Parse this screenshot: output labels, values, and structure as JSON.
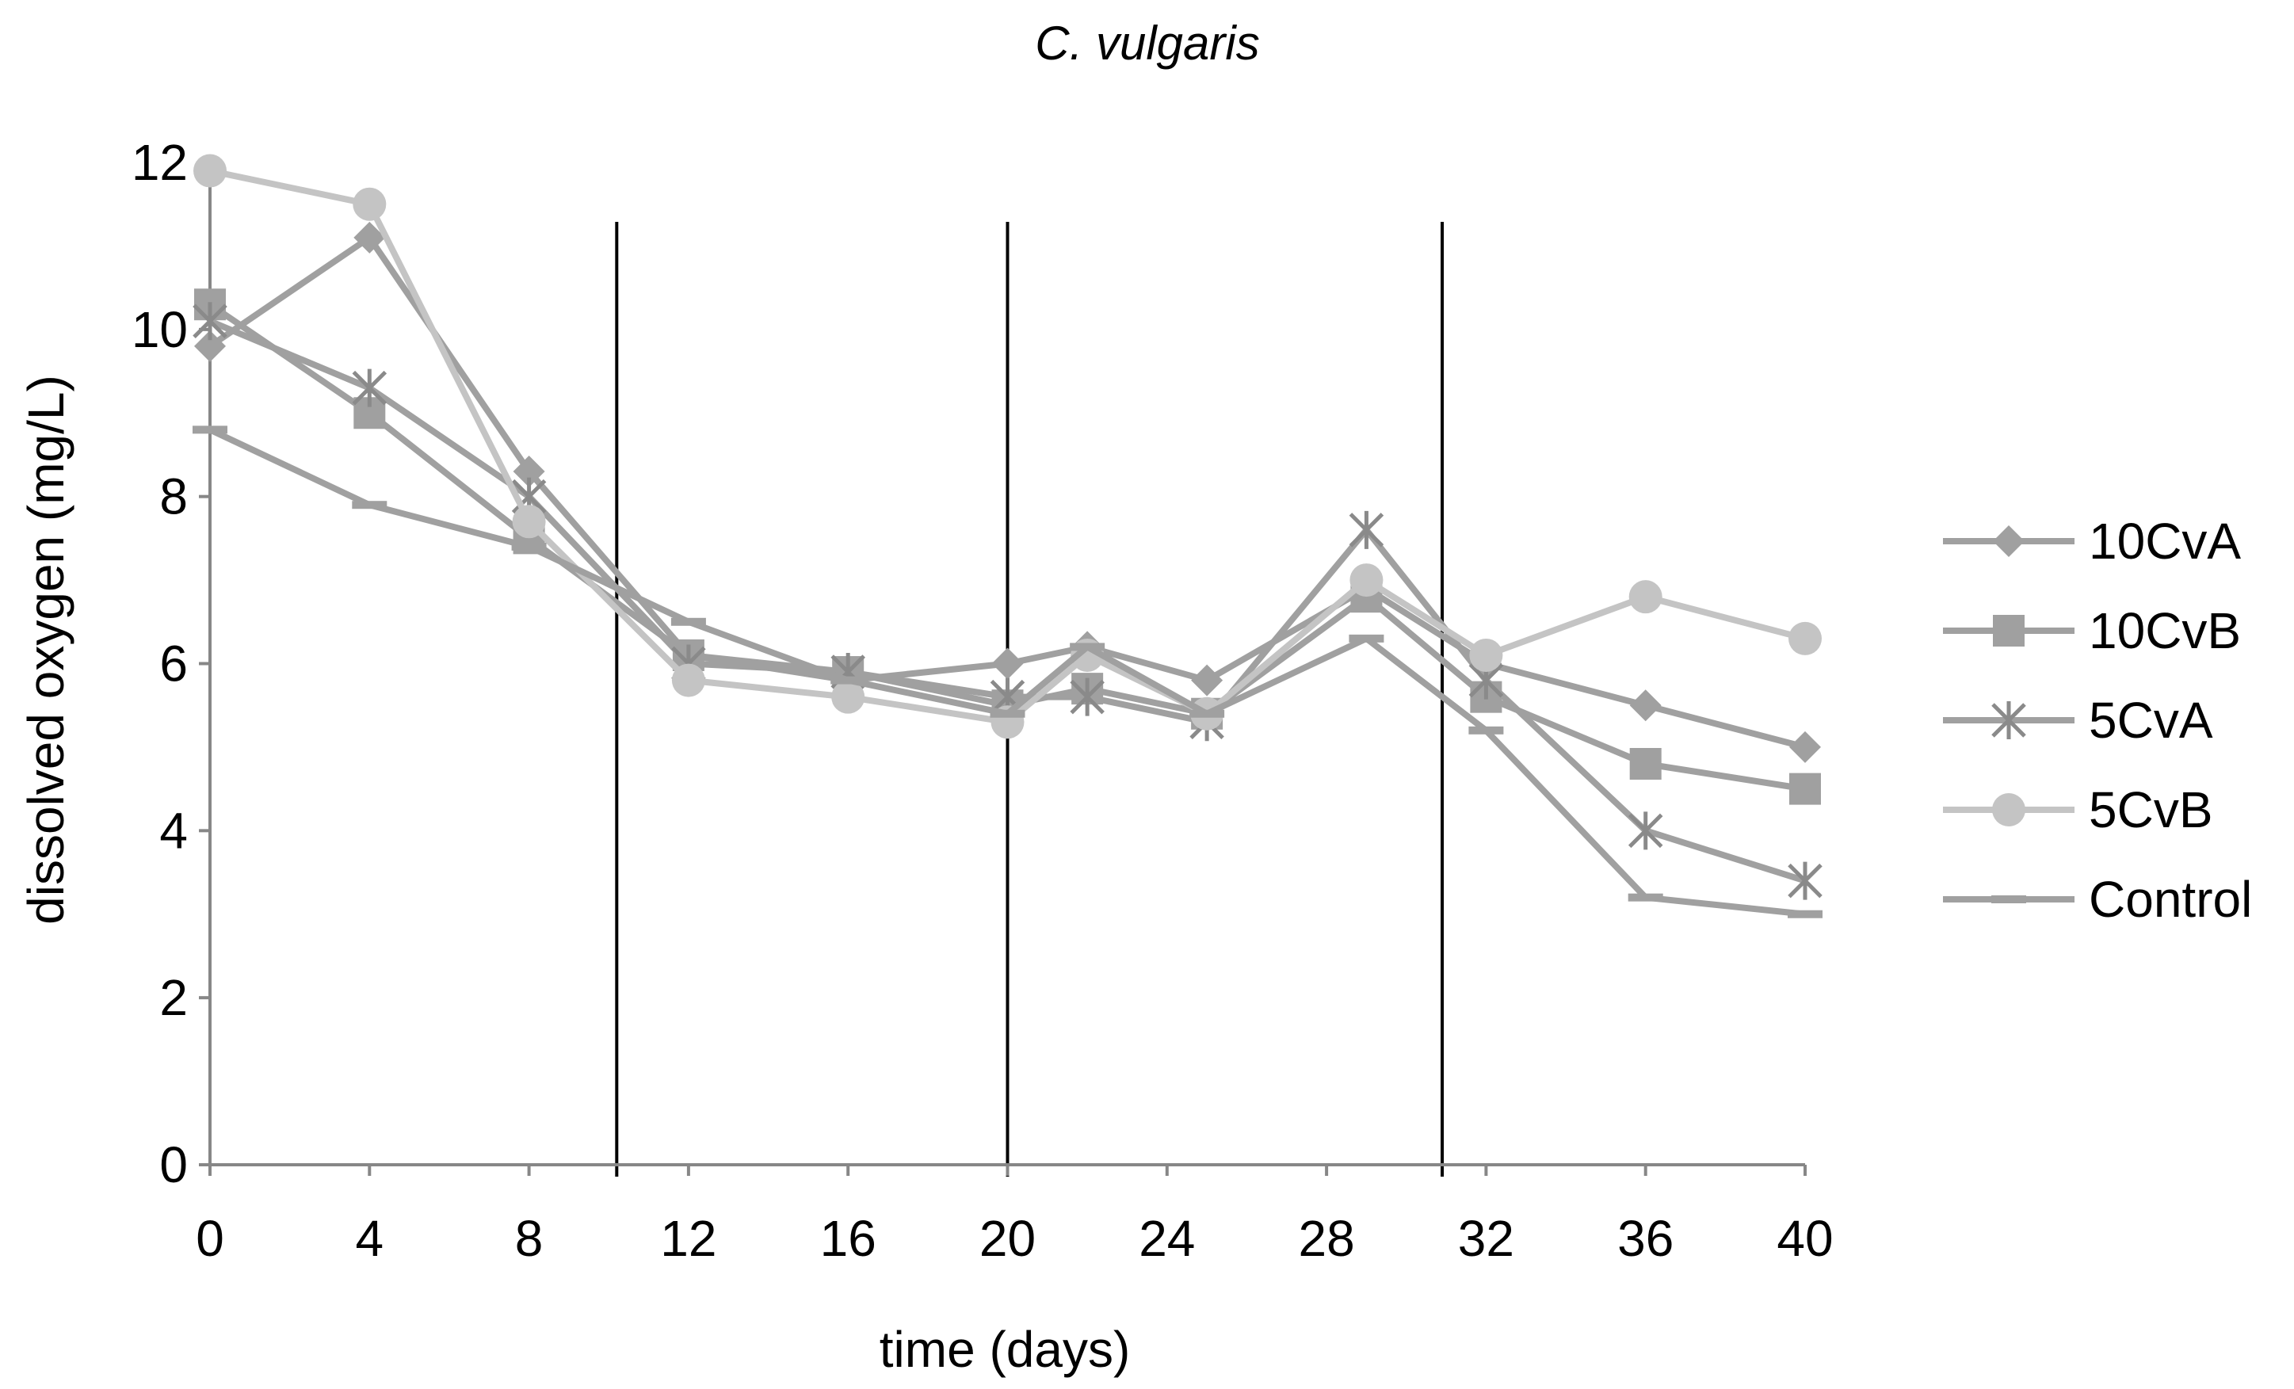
{
  "chart_data": {
    "type": "line",
    "title": "C. vulgaris",
    "xlabel": "time (days)",
    "ylabel": "dissolved oxygen (mg/L)",
    "xlim": [
      0,
      40
    ],
    "ylim": [
      0,
      12
    ],
    "xticks": [
      0,
      4,
      8,
      12,
      16,
      20,
      24,
      28,
      32,
      36,
      40
    ],
    "yticks": [
      0,
      2,
      4,
      6,
      8,
      10,
      12
    ],
    "grid": false,
    "legend": "right",
    "vertical_lines": [
      10.2,
      20,
      30.9
    ],
    "series": [
      {
        "name": "10CvA",
        "marker": "diamond",
        "color": "#a0a0a0",
        "x": [
          0,
          4,
          8,
          12,
          16,
          20,
          22,
          25,
          29,
          32,
          36,
          40
        ],
        "y": [
          9.8,
          11.1,
          8.3,
          6.1,
          5.8,
          6.0,
          6.2,
          5.8,
          6.9,
          6.0,
          5.5,
          5.0
        ]
      },
      {
        "name": "10CvB",
        "marker": "square",
        "color": "#a0a0a0",
        "x": [
          0,
          4,
          8,
          12,
          16,
          20,
          22,
          25,
          29,
          32,
          36,
          40
        ],
        "y": [
          10.3,
          9.0,
          7.5,
          6.1,
          5.9,
          5.5,
          5.7,
          5.4,
          6.8,
          5.6,
          4.8,
          4.5
        ]
      },
      {
        "name": "5CvA",
        "marker": "asterisk",
        "color": "#a0a0a0",
        "x": [
          0,
          4,
          8,
          12,
          16,
          20,
          22,
          25,
          29,
          32,
          36,
          40
        ],
        "y": [
          10.1,
          9.3,
          8.0,
          6.0,
          5.9,
          5.6,
          5.6,
          5.3,
          7.6,
          5.8,
          4.0,
          3.4
        ]
      },
      {
        "name": "5CvB",
        "marker": "circle",
        "color": "#c4c4c4",
        "x": [
          0,
          4,
          8,
          12,
          16,
          20,
          22,
          25,
          29,
          32,
          36,
          40
        ],
        "y": [
          11.9,
          11.5,
          7.7,
          5.8,
          5.6,
          5.3,
          6.1,
          5.4,
          7.0,
          6.1,
          6.8,
          6.3
        ]
      },
      {
        "name": "Control",
        "marker": "dash",
        "color": "#a0a0a0",
        "x": [
          0,
          4,
          8,
          12,
          16,
          20,
          22,
          25,
          29,
          32,
          36,
          40
        ],
        "y": [
          8.8,
          7.9,
          7.4,
          6.5,
          5.8,
          5.4,
          6.2,
          5.4,
          6.3,
          5.2,
          3.2,
          3.0
        ]
      }
    ]
  }
}
